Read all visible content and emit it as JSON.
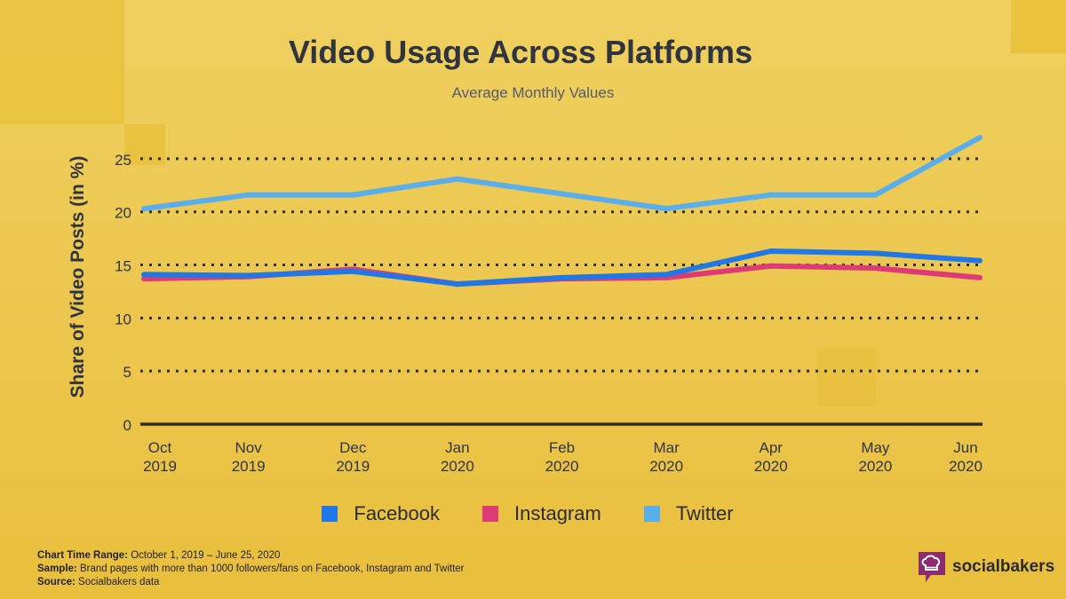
{
  "colors": {
    "facebook": "#1f78e6",
    "instagram": "#de3a78",
    "twitter": "#5aaeec",
    "grid": "#2d2d2d",
    "axis": "#2d2d2d",
    "text": "#2f3440",
    "brand": "#8e2a70"
  },
  "chart_data": {
    "type": "line",
    "title": "Video Usage Across Platforms",
    "subtitle": "Average Monthly Values",
    "xlabel": "",
    "ylabel": "Share of Video Posts (in %)",
    "ylim": [
      0,
      27
    ],
    "yticks": [
      0,
      5,
      10,
      15,
      20,
      25
    ],
    "grid": true,
    "categories": [
      {
        "month": "Oct",
        "year": "2019"
      },
      {
        "month": "Nov",
        "year": "2019"
      },
      {
        "month": "Dec",
        "year": "2019"
      },
      {
        "month": "Jan",
        "year": "2020"
      },
      {
        "month": "Feb",
        "year": "2020"
      },
      {
        "month": "Mar",
        "year": "2020"
      },
      {
        "month": "Apr",
        "year": "2020"
      },
      {
        "month": "May",
        "year": "2020"
      },
      {
        "month": "Jun",
        "year": "2020"
      }
    ],
    "series": [
      {
        "name": "Facebook",
        "color_key": "facebook",
        "values": [
          14.1,
          14.0,
          14.4,
          13.2,
          13.8,
          14.1,
          16.3,
          16.1,
          15.4
        ]
      },
      {
        "name": "Instagram",
        "color_key": "instagram",
        "values": [
          13.7,
          13.9,
          14.6,
          13.2,
          13.7,
          13.8,
          14.9,
          14.7,
          13.8
        ]
      },
      {
        "name": "Twitter",
        "color_key": "twitter",
        "values": [
          20.3,
          21.6,
          21.6,
          23.1,
          21.7,
          20.3,
          21.6,
          21.6,
          27.0
        ]
      }
    ],
    "legend_position": "bottom"
  },
  "footer": {
    "time_range_label": "Chart Time Range:",
    "time_range_value": " October 1, 2019 – June 25, 2020",
    "sample_label": "Sample:",
    "sample_value": " Brand pages with more than 1000 followers/fans on Facebook, Instagram and Twitter",
    "source_label": "Source:",
    "source_value": " Socialbakers data"
  },
  "brand": {
    "name": "socialbakers",
    "logo_icon": "chef-hat-speech-bubble-icon"
  }
}
